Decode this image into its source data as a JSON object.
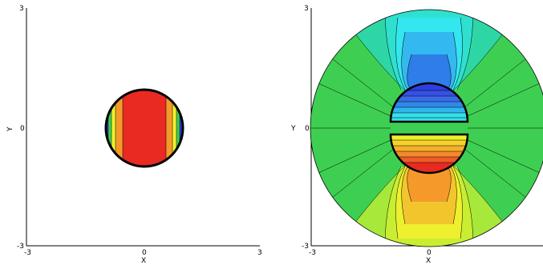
{
  "panels": [
    {
      "id": "left",
      "xlabel": "X",
      "ylabel": "Y",
      "xticks": [
        "-3",
        "0",
        "3"
      ],
      "yticks": [
        "-3",
        "0",
        "3"
      ],
      "xlim": [
        -3,
        3
      ],
      "ylim": [
        -3,
        3
      ],
      "domain_radius": 1
    },
    {
      "id": "right",
      "xlabel": "X",
      "ylabel": "Y",
      "xticks": [
        "-3",
        "0"
      ],
      "yticks": [
        "-3",
        "0",
        "3"
      ],
      "xlim": [
        -3,
        3
      ],
      "ylim": [
        -3,
        3
      ],
      "domain_radius": 3,
      "inner_circle_radius": 1
    }
  ],
  "colors": {
    "red": "#e82a22",
    "orange": "#f59a2a",
    "yellow": "#eef02e",
    "green": "#3ecf52",
    "teal": "#2ec9a0",
    "cyan": "#34e6f0",
    "blue": "#2e3fe0"
  }
}
